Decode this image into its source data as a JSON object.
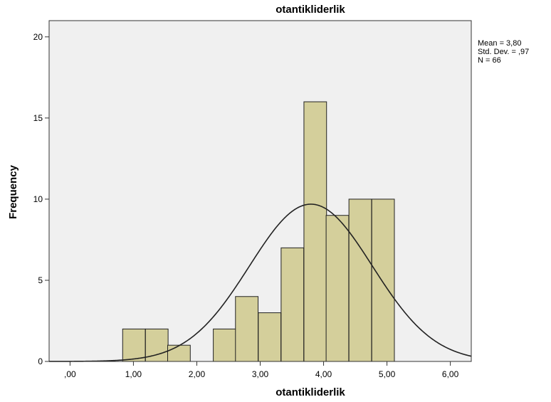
{
  "chart_data": {
    "type": "bar",
    "title": "otantikliderlik",
    "xlabel": "otantikliderlik",
    "ylabel": "Frequency",
    "xlim": [
      -0.33,
      6.33
    ],
    "ylim": [
      0,
      21
    ],
    "x_ticks": [
      0,
      1,
      2,
      3,
      4,
      5,
      6
    ],
    "x_tick_labels": [
      ",00",
      "1,00",
      "2,00",
      "3,00",
      "4,00",
      "5,00",
      "6,00"
    ],
    "y_ticks": [
      0,
      5,
      10,
      15,
      20
    ],
    "y_tick_labels": [
      "0",
      "5",
      "10",
      "15",
      "20"
    ],
    "bin_width": 0.357,
    "bins": [
      {
        "x0": 0.83,
        "value": 2
      },
      {
        "x0": 1.19,
        "value": 2
      },
      {
        "x0": 1.54,
        "value": 1
      },
      {
        "x0": 2.26,
        "value": 2
      },
      {
        "x0": 2.61,
        "value": 4
      },
      {
        "x0": 2.97,
        "value": 3
      },
      {
        "x0": 3.33,
        "value": 7
      },
      {
        "x0": 3.69,
        "value": 16
      },
      {
        "x0": 4.04,
        "value": 9
      },
      {
        "x0": 4.4,
        "value": 10
      },
      {
        "x0": 4.76,
        "value": 10
      }
    ],
    "normal_curve": {
      "mean": 3.8,
      "sd": 0.97,
      "n": 66
    },
    "stats_text": [
      "Mean = 3,80",
      "Std. Dev. = ,97",
      "N = 66"
    ],
    "colors": {
      "bar_fill": "#d4cf9b",
      "plot_bg": "#f0f0f0",
      "curve": "#222222"
    },
    "grid": false,
    "legend": "none"
  }
}
